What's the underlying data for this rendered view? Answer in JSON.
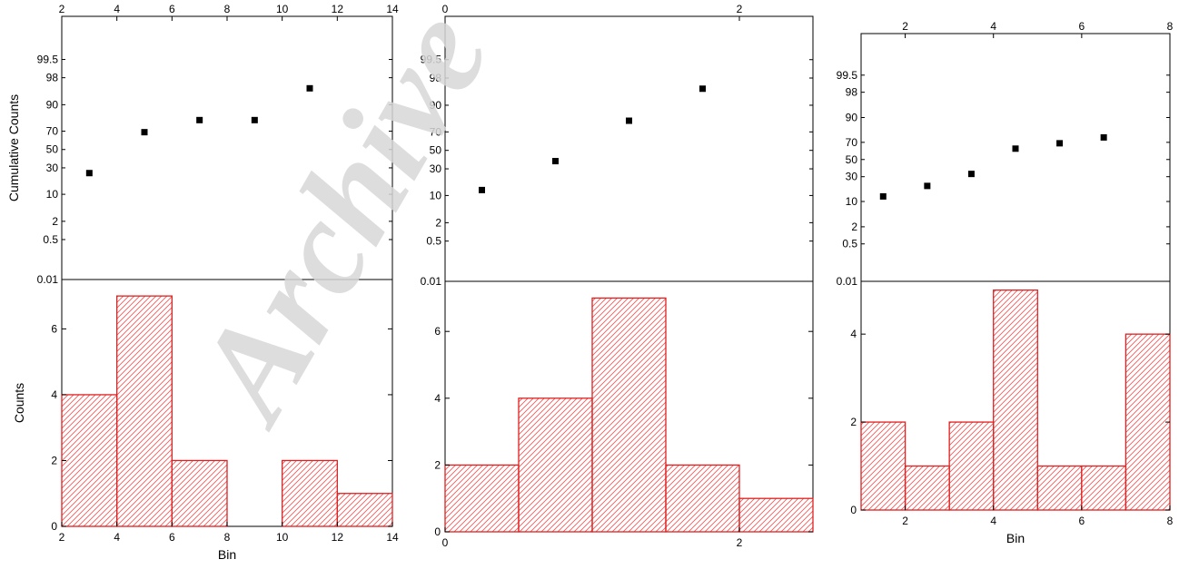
{
  "watermark": "Archive",
  "colors": {
    "bar_stroke": "#e02020",
    "hatch": "#ee5555",
    "point": "#000000",
    "axis": "#000000",
    "watermark": "#d8d8d8"
  },
  "chart_data": [
    {
      "type": "bar",
      "id": "panel1",
      "cumulative": {
        "type": "scatter",
        "ylabel": "Cumulative Counts",
        "yticks": [
          "0.01",
          "0.5",
          "2",
          "10",
          "30",
          "50",
          "70",
          "90",
          "98",
          "99.5"
        ],
        "x": [
          3,
          5,
          7,
          9,
          11
        ],
        "y": [
          25,
          69,
          80,
          80,
          96
        ]
      },
      "histogram": {
        "ylabel": "Counts",
        "xlabel": "Bin",
        "bin_edges": [
          2,
          4,
          6,
          8,
          10,
          12,
          14
        ],
        "counts": [
          4,
          7,
          2,
          0,
          2,
          1
        ],
        "ylim": [
          0,
          7.5
        ],
        "yticks": [
          "0",
          "2",
          "4",
          "6"
        ]
      },
      "xlim": [
        2,
        14
      ],
      "xticks": [
        "2",
        "4",
        "6",
        "8",
        "10",
        "12",
        "14"
      ],
      "top_xticks": [
        "2",
        "4",
        "6",
        "8",
        "10",
        "12",
        "14"
      ]
    },
    {
      "type": "bar",
      "id": "panel2",
      "cumulative": {
        "type": "scatter",
        "ylabel": "",
        "yticks": [
          "0.01",
          "0.5",
          "2",
          "10",
          "30",
          "50",
          "70",
          "90",
          "98",
          "99.5"
        ],
        "x": [
          0.25,
          0.75,
          1.25,
          1.75
        ],
        "y": [
          13,
          38,
          80,
          96
        ]
      },
      "histogram": {
        "ylabel": "",
        "xlabel": "",
        "bin_edges": [
          0,
          0.5,
          1.0,
          1.5,
          2.0,
          2.5
        ],
        "counts": [
          2,
          4,
          7,
          2,
          1
        ],
        "ylim": [
          0,
          7.5
        ],
        "yticks": [
          "0",
          "2",
          "4",
          "6"
        ]
      },
      "xlim": [
        0,
        2.5
      ],
      "xticks": [
        "0",
        "2"
      ],
      "top_xticks": [
        "0",
        "2"
      ]
    },
    {
      "type": "bar",
      "id": "panel3",
      "cumulative": {
        "type": "scatter",
        "ylabel": "",
        "yticks": [
          "0.01",
          "0.5",
          "2",
          "10",
          "30",
          "50",
          "70",
          "90",
          "98",
          "99.5"
        ],
        "x": [
          1.5,
          2.5,
          3.5,
          4.5,
          5.5,
          6.5
        ],
        "y": [
          13,
          21,
          33,
          63,
          69,
          75
        ]
      },
      "histogram": {
        "ylabel": "",
        "xlabel": "Bin",
        "bin_edges": [
          1,
          2,
          3,
          4,
          5,
          6,
          7,
          8
        ],
        "counts": [
          2,
          1,
          2,
          5,
          1,
          1,
          4
        ],
        "ylim": [
          0,
          5.2
        ],
        "yticks": [
          "0",
          "2",
          "4"
        ]
      },
      "xlim": [
        1,
        8
      ],
      "xticks": [
        "2",
        "4",
        "6",
        "8"
      ],
      "top_xticks": [
        "2",
        "4",
        "6",
        "8"
      ]
    }
  ]
}
